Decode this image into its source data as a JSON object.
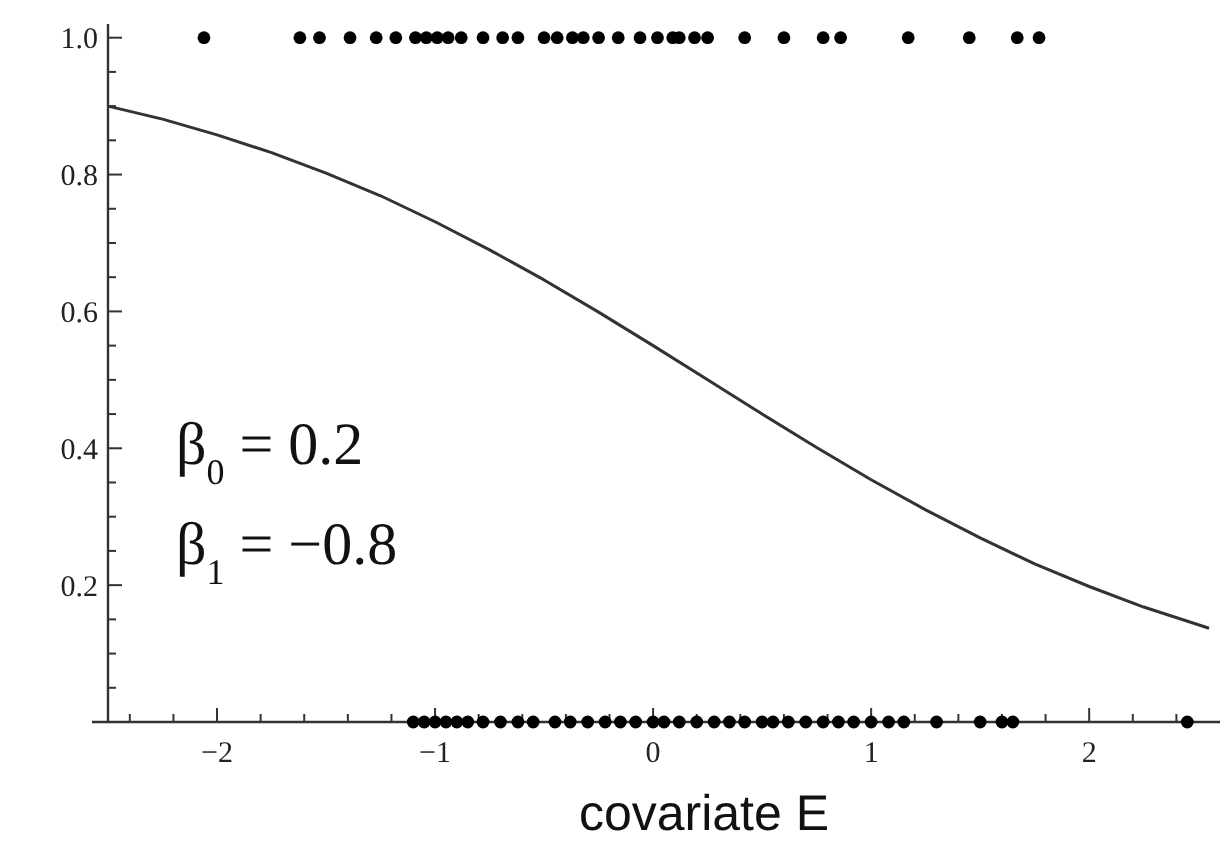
{
  "chart_data": {
    "type": "line",
    "xlabel": "covariate E",
    "xlim": [
      -2.5,
      2.6
    ],
    "ylim": [
      0,
      1.02
    ],
    "xticks": [
      {
        "value": -2,
        "label": "−2"
      },
      {
        "value": -1,
        "label": "−1"
      },
      0,
      1,
      2,
      {
        "value": -2.4,
        "label": null
      },
      {
        "value": -2.2,
        "label": null
      },
      {
        "value": -1.8,
        "label": null
      },
      {
        "value": -1.6,
        "label": null
      },
      {
        "value": -1.4,
        "label": null
      },
      {
        "value": -1.2,
        "label": null
      },
      {
        "value": -0.8,
        "label": null
      },
      {
        "value": -0.6,
        "label": null
      },
      {
        "value": -0.4,
        "label": null
      },
      {
        "value": -0.2,
        "label": null
      },
      {
        "value": 0.2,
        "label": null
      },
      {
        "value": 0.4,
        "label": null
      },
      {
        "value": 0.6,
        "label": null
      },
      {
        "value": 0.8,
        "label": null
      },
      {
        "value": 1.2,
        "label": null
      },
      {
        "value": 1.4,
        "label": null
      },
      {
        "value": 1.6,
        "label": null
      },
      {
        "value": 1.8,
        "label": null
      },
      {
        "value": 2.2,
        "label": null
      },
      {
        "value": 2.4,
        "label": null
      }
    ],
    "yticks": [
      0.2,
      0.4,
      0.6,
      0.8,
      {
        "value": 1,
        "label": "1.0"
      },
      {
        "value": 0.05,
        "label": null
      },
      {
        "value": 0.1,
        "label": null
      },
      {
        "value": 0.15,
        "label": null
      },
      {
        "value": 0.25,
        "label": null
      },
      {
        "value": 0.3,
        "label": null
      },
      {
        "value": 0.35,
        "label": null
      },
      {
        "value": 0.45,
        "label": null
      },
      {
        "value": 0.5,
        "label": null
      },
      {
        "value": 0.55,
        "label": null
      },
      {
        "value": 0.65,
        "label": null
      },
      {
        "value": 0.7,
        "label": null
      },
      {
        "value": 0.75,
        "label": null
      },
      {
        "value": 0.85,
        "label": null
      },
      {
        "value": 0.9,
        "label": null
      },
      {
        "value": 0.95,
        "label": null
      }
    ],
    "grid": false,
    "annotations": [
      "β$_{0}$ = 0.2",
      "β$_{1}$ = −0.8"
    ],
    "series": [
      {
        "color": "#333333",
        "marker": "none",
        "line_style": "solid",
        "x": [
          -2.5,
          -2.25,
          -2,
          -1.75,
          -1.5,
          -1.25,
          -1,
          -0.75,
          -0.5,
          -0.25,
          0,
          0.25,
          0.5,
          0.75,
          1,
          1.25,
          1.5,
          1.75,
          2,
          2.25,
          2.55
        ],
        "values": [
          0.9,
          0.881,
          0.858,
          0.832,
          0.802,
          0.769,
          0.731,
          0.69,
          0.646,
          0.599,
          0.55,
          0.5,
          0.45,
          0.401,
          0.354,
          0.31,
          0.269,
          0.231,
          0.198,
          0.168,
          0.137
        ]
      },
      {
        "type": "scatter",
        "color": "#000000",
        "marker": "circle",
        "x": [
          -2.06,
          -1.62,
          -1.53,
          -1.39,
          -1.27,
          -1.18,
          -1.09,
          -1.04,
          -0.99,
          -0.94,
          -0.88,
          -0.78,
          -0.69,
          -0.62,
          -0.5,
          -0.44,
          -0.37,
          -0.32,
          -0.25,
          -0.16,
          -0.06,
          0.02,
          0.09,
          0.12,
          0.19,
          0.25,
          0.42,
          0.6,
          0.78,
          0.86,
          1.17,
          1.45,
          1.67,
          1.77
        ],
        "values": [
          1,
          1,
          1,
          1,
          1,
          1,
          1,
          1,
          1,
          1,
          1,
          1,
          1,
          1,
          1,
          1,
          1,
          1,
          1,
          1,
          1,
          1,
          1,
          1,
          1,
          1,
          1,
          1,
          1,
          1,
          1,
          1,
          1,
          1
        ]
      },
      {
        "type": "scatter",
        "color": "#000000",
        "marker": "circle",
        "x": [
          -1.1,
          -1.05,
          -1,
          -0.95,
          -0.9,
          -0.85,
          -0.78,
          -0.7,
          -0.62,
          -0.55,
          -0.45,
          -0.38,
          -0.3,
          -0.22,
          -0.15,
          -0.08,
          0,
          0.05,
          0.12,
          0.2,
          0.28,
          0.35,
          0.42,
          0.5,
          0.55,
          0.62,
          0.7,
          0.78,
          0.85,
          0.92,
          1,
          1.08,
          1.15,
          1.3,
          1.5,
          1.6,
          1.65,
          2.45
        ],
        "values": [
          0,
          0,
          0,
          0,
          0,
          0,
          0,
          0,
          0,
          0,
          0,
          0,
          0,
          0,
          0,
          0,
          0,
          0,
          0,
          0,
          0,
          0,
          0,
          0,
          0,
          0,
          0,
          0,
          0,
          0,
          0,
          0,
          0,
          0,
          0,
          0,
          0,
          0
        ]
      }
    ]
  }
}
